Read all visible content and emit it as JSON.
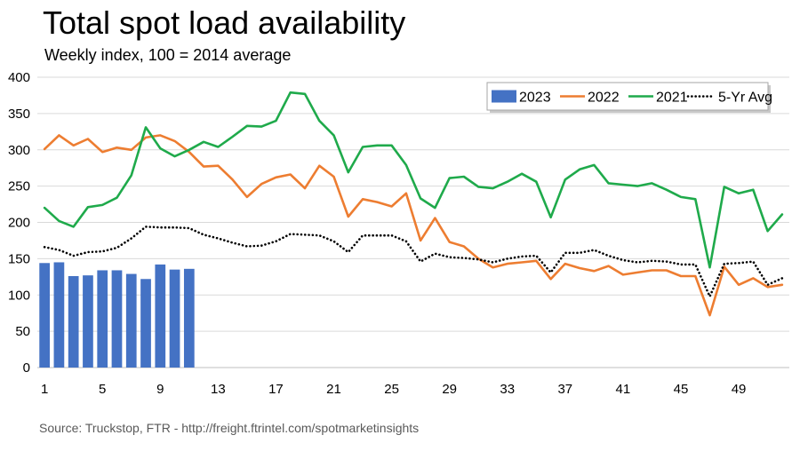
{
  "page": {
    "title": "Total spot load availability",
    "subtitle": "Weekly index, 100 = 2014 average",
    "source": "Source: Truckstop, FTR - http://freight.ftrintel.com/spotmarketinsights"
  },
  "chart_data": {
    "type": "bar+line",
    "title": "Total spot load availability",
    "subtitle": "Weekly index, 100 = 2014 average",
    "xlabel": "",
    "ylabel": "",
    "ylim": [
      0,
      400
    ],
    "yticks": [
      0,
      50,
      100,
      150,
      200,
      250,
      300,
      350,
      400
    ],
    "xlim": [
      1,
      52
    ],
    "xticks": [
      1,
      5,
      9,
      13,
      17,
      21,
      25,
      29,
      33,
      37,
      41,
      45,
      49
    ],
    "legend_position": "top-right",
    "grid": "horizontal",
    "series": [
      {
        "name": "2023",
        "kind": "bar",
        "color": "#4472c4",
        "x": [
          1,
          2,
          3,
          4,
          5,
          6,
          7,
          8,
          9,
          10,
          11
        ],
        "values": [
          144,
          145,
          126,
          127,
          134,
          134,
          129,
          122,
          142,
          135,
          136
        ]
      },
      {
        "name": "2022",
        "kind": "line",
        "color": "#ed7d31",
        "x": [
          1,
          2,
          3,
          4,
          5,
          6,
          7,
          8,
          9,
          10,
          11,
          12,
          13,
          14,
          15,
          16,
          17,
          18,
          19,
          20,
          21,
          22,
          23,
          24,
          25,
          26,
          27,
          28,
          29,
          30,
          31,
          32,
          33,
          34,
          35,
          36,
          37,
          38,
          39,
          40,
          41,
          42,
          43,
          44,
          45,
          46,
          47,
          48,
          49,
          50,
          51,
          52
        ],
        "values": [
          301,
          320,
          306,
          315,
          297,
          303,
          300,
          317,
          320,
          312,
          297,
          277,
          278,
          259,
          235,
          253,
          262,
          266,
          247,
          278,
          263,
          208,
          232,
          228,
          222,
          240,
          175,
          206,
          173,
          167,
          150,
          138,
          143,
          145,
          147,
          122,
          143,
          137,
          133,
          140,
          128,
          131,
          134,
          134,
          126,
          126,
          72,
          139,
          114,
          123,
          111,
          114
        ]
      },
      {
        "name": "2021",
        "kind": "line",
        "color": "#1faa4b",
        "x": [
          1,
          2,
          3,
          4,
          5,
          6,
          7,
          8,
          9,
          10,
          11,
          12,
          13,
          14,
          15,
          16,
          17,
          18,
          19,
          20,
          21,
          22,
          23,
          24,
          25,
          26,
          27,
          28,
          29,
          30,
          31,
          32,
          33,
          34,
          35,
          36,
          37,
          38,
          39,
          40,
          41,
          42,
          43,
          44,
          45,
          46,
          47,
          48,
          49,
          50,
          51,
          52
        ],
        "values": [
          220,
          202,
          194,
          221,
          224,
          234,
          265,
          331,
          302,
          291,
          300,
          311,
          304,
          318,
          333,
          332,
          340,
          379,
          377,
          340,
          320,
          269,
          304,
          306,
          306,
          279,
          233,
          220,
          261,
          263,
          249,
          247,
          256,
          267,
          256,
          207,
          259,
          273,
          279,
          254,
          252,
          250,
          254,
          245,
          235,
          232,
          138,
          249,
          240,
          245,
          188,
          211
        ]
      },
      {
        "name": "5-Yr Avg",
        "kind": "line",
        "style": "dotted",
        "color": "#000000",
        "x": [
          1,
          2,
          3,
          4,
          5,
          6,
          7,
          8,
          9,
          10,
          11,
          12,
          13,
          14,
          15,
          16,
          17,
          18,
          19,
          20,
          21,
          22,
          23,
          24,
          25,
          26,
          27,
          28,
          29,
          30,
          31,
          32,
          33,
          34,
          35,
          36,
          37,
          38,
          39,
          40,
          41,
          42,
          43,
          44,
          45,
          46,
          47,
          48,
          49,
          50,
          51,
          52
        ],
        "values": [
          166,
          162,
          154,
          159,
          160,
          165,
          178,
          194,
          193,
          193,
          192,
          183,
          178,
          172,
          167,
          168,
          174,
          184,
          183,
          182,
          174,
          159,
          182,
          182,
          182,
          174,
          146,
          157,
          152,
          151,
          149,
          145,
          150,
          153,
          154,
          131,
          158,
          158,
          162,
          154,
          148,
          145,
          147,
          146,
          142,
          142,
          98,
          143,
          144,
          146,
          114,
          123
        ]
      }
    ]
  }
}
